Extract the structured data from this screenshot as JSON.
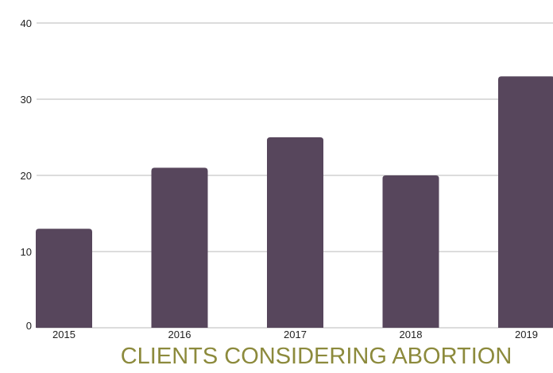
{
  "chart_data": {
    "type": "bar",
    "title": "CLIENTS CONSIDERING ABORTION",
    "categories": [
      "2015",
      "2016",
      "2017",
      "2018",
      "2019"
    ],
    "values": [
      13,
      21,
      25,
      20,
      33
    ],
    "ylim": [
      0,
      40
    ],
    "yticks": [
      "0",
      "10",
      "20",
      "30",
      "40"
    ],
    "xlabel": "",
    "ylabel": "",
    "grid": true,
    "colors": {
      "bar": "#57465c",
      "grid": "#c8c8c8",
      "title": "#8c8a3c"
    }
  }
}
